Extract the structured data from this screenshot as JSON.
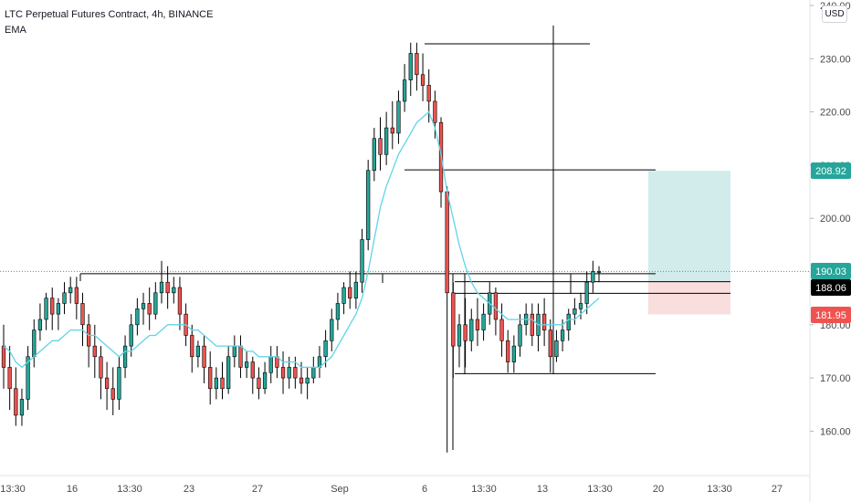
{
  "header": {
    "title": "LTC Perpetual Futures Contract, 4h, BINANCE",
    "indicator": "EMA",
    "currency": "USD"
  },
  "colors": {
    "up": "#26a69a",
    "down": "#ef5350",
    "candle_wick": "#000000",
    "ema": "#5fd4e8",
    "drawing": "#000000",
    "target_zone": "#b2e0dd",
    "stop_zone": "#f8cfcf",
    "target_badge": "#26a69a",
    "current_badge": "#26a69a",
    "entry_badge": "#000000",
    "stop_badge": "#ef5350",
    "grid_text": "#4a4a4a"
  },
  "chart_data": {
    "type": "candlestick",
    "title": "LTC Perpetual Futures Contract, 4h, BINANCE",
    "ylim": [
      150.0,
      240.0
    ],
    "y_ticks": [
      "240.00",
      "230.00",
      "220.00",
      "210.00",
      "200.00",
      "180.00",
      "170.00",
      "160.00"
    ],
    "x_ticks": [
      "13:30",
      "16",
      "13:30",
      "23",
      "27",
      "Sep",
      "6",
      "13:30",
      "13",
      "13:30",
      "20",
      "13:30",
      "27"
    ],
    "price_labels": [
      {
        "label": "208.92",
        "value": 208.92,
        "kind": "target"
      },
      {
        "label": "190.03",
        "value": 190.03,
        "kind": "current"
      },
      {
        "label": "188.06",
        "value": 188.06,
        "kind": "entry"
      },
      {
        "label": "181.95",
        "value": 181.95,
        "kind": "stop"
      }
    ],
    "horizontal_levels": [
      189.6,
      188.1,
      185.9,
      170.8,
      209.1,
      232.8
    ],
    "candles": [
      {
        "o": 176,
        "h": 180,
        "c": 172,
        "l": 168
      },
      {
        "o": 172,
        "h": 176,
        "c": 168,
        "l": 164
      },
      {
        "o": 168,
        "h": 172,
        "c": 163,
        "l": 161
      },
      {
        "o": 163,
        "h": 168,
        "c": 166,
        "l": 161
      },
      {
        "o": 166,
        "h": 176,
        "c": 174,
        "l": 164
      },
      {
        "o": 174,
        "h": 181,
        "c": 179,
        "l": 172
      },
      {
        "o": 179,
        "h": 184,
        "c": 181,
        "l": 177
      },
      {
        "o": 181,
        "h": 186,
        "c": 185,
        "l": 179
      },
      {
        "o": 185,
        "h": 187,
        "c": 182,
        "l": 179
      },
      {
        "o": 182,
        "h": 185,
        "c": 184,
        "l": 179
      },
      {
        "o": 184,
        "h": 188,
        "c": 186,
        "l": 182
      },
      {
        "o": 186,
        "h": 189,
        "c": 187,
        "l": 184
      },
      {
        "o": 187,
        "h": 189,
        "c": 184,
        "l": 181
      },
      {
        "o": 184,
        "h": 186,
        "c": 180,
        "l": 176
      },
      {
        "o": 180,
        "h": 182,
        "c": 176,
        "l": 172
      },
      {
        "o": 176,
        "h": 180,
        "c": 174,
        "l": 170
      },
      {
        "o": 174,
        "h": 176,
        "c": 170,
        "l": 166
      },
      {
        "o": 170,
        "h": 173,
        "c": 168,
        "l": 164
      },
      {
        "o": 168,
        "h": 172,
        "c": 166,
        "l": 163
      },
      {
        "o": 166,
        "h": 174,
        "c": 172,
        "l": 164
      },
      {
        "o": 172,
        "h": 178,
        "c": 176,
        "l": 170
      },
      {
        "o": 176,
        "h": 182,
        "c": 180,
        "l": 174
      },
      {
        "o": 180,
        "h": 185,
        "c": 183,
        "l": 178
      },
      {
        "o": 183,
        "h": 186,
        "c": 184,
        "l": 180
      },
      {
        "o": 184,
        "h": 187,
        "c": 182,
        "l": 179
      },
      {
        "o": 182,
        "h": 188,
        "c": 186,
        "l": 181
      },
      {
        "o": 186,
        "h": 192,
        "c": 188,
        "l": 184
      },
      {
        "o": 188,
        "h": 191,
        "c": 186,
        "l": 183
      },
      {
        "o": 186,
        "h": 189,
        "c": 187,
        "l": 184
      },
      {
        "o": 187,
        "h": 189,
        "c": 182,
        "l": 179
      },
      {
        "o": 182,
        "h": 184,
        "c": 178,
        "l": 176
      },
      {
        "o": 178,
        "h": 180,
        "c": 174,
        "l": 171
      },
      {
        "o": 174,
        "h": 177,
        "c": 176,
        "l": 172
      },
      {
        "o": 176,
        "h": 178,
        "c": 172,
        "l": 169
      },
      {
        "o": 172,
        "h": 175,
        "c": 168,
        "l": 165
      },
      {
        "o": 168,
        "h": 172,
        "c": 170,
        "l": 166
      },
      {
        "o": 170,
        "h": 173,
        "c": 168,
        "l": 166
      },
      {
        "o": 168,
        "h": 176,
        "c": 174,
        "l": 167
      },
      {
        "o": 174,
        "h": 178,
        "c": 176,
        "l": 172
      },
      {
        "o": 176,
        "h": 178,
        "c": 172,
        "l": 170
      },
      {
        "o": 172,
        "h": 175,
        "c": 173,
        "l": 170
      },
      {
        "o": 173,
        "h": 174,
        "c": 170,
        "l": 167
      },
      {
        "o": 170,
        "h": 172,
        "c": 168,
        "l": 166
      },
      {
        "o": 168,
        "h": 173,
        "c": 171,
        "l": 167
      },
      {
        "o": 171,
        "h": 176,
        "c": 174,
        "l": 169
      },
      {
        "o": 174,
        "h": 176,
        "c": 172,
        "l": 170
      },
      {
        "o": 172,
        "h": 175,
        "c": 170,
        "l": 167
      },
      {
        "o": 170,
        "h": 174,
        "c": 172,
        "l": 168
      },
      {
        "o": 172,
        "h": 174,
        "c": 170,
        "l": 168
      },
      {
        "o": 170,
        "h": 173,
        "c": 169,
        "l": 167
      },
      {
        "o": 169,
        "h": 172,
        "c": 170,
        "l": 166
      },
      {
        "o": 170,
        "h": 174,
        "c": 172,
        "l": 169
      },
      {
        "o": 172,
        "h": 176,
        "c": 174,
        "l": 170
      },
      {
        "o": 174,
        "h": 179,
        "c": 177,
        "l": 172
      },
      {
        "o": 177,
        "h": 183,
        "c": 181,
        "l": 175
      },
      {
        "o": 181,
        "h": 186,
        "c": 184,
        "l": 179
      },
      {
        "o": 184,
        "h": 188,
        "c": 187,
        "l": 182
      },
      {
        "o": 187,
        "h": 190,
        "c": 185,
        "l": 183
      },
      {
        "o": 185,
        "h": 190,
        "c": 188,
        "l": 183
      },
      {
        "o": 188,
        "h": 198,
        "c": 196,
        "l": 186
      },
      {
        "o": 196,
        "h": 211,
        "c": 209,
        "l": 194
      },
      {
        "o": 209,
        "h": 217,
        "c": 215,
        "l": 207
      },
      {
        "o": 215,
        "h": 219,
        "c": 212,
        "l": 209
      },
      {
        "o": 212,
        "h": 220,
        "c": 217,
        "l": 210
      },
      {
        "o": 217,
        "h": 222,
        "c": 216,
        "l": 213
      },
      {
        "o": 216,
        "h": 224,
        "c": 222,
        "l": 214
      },
      {
        "o": 222,
        "h": 229,
        "c": 226,
        "l": 220
      },
      {
        "o": 226,
        "h": 233,
        "c": 231,
        "l": 223
      },
      {
        "o": 231,
        "h": 233,
        "c": 227,
        "l": 224
      },
      {
        "o": 227,
        "h": 231,
        "c": 225,
        "l": 222
      },
      {
        "o": 225,
        "h": 228,
        "c": 222,
        "l": 218
      },
      {
        "o": 222,
        "h": 224,
        "c": 218,
        "l": 215
      },
      {
        "o": 218,
        "h": 219,
        "c": 205,
        "l": 202
      },
      {
        "o": 205,
        "h": 206,
        "c": 186,
        "l": 156
      },
      {
        "o": 186,
        "h": 188,
        "c": 176,
        "l": 170
      },
      {
        "o": 176,
        "h": 182,
        "c": 180,
        "l": 172
      },
      {
        "o": 180,
        "h": 185,
        "c": 177,
        "l": 172
      },
      {
        "o": 177,
        "h": 183,
        "c": 181,
        "l": 175
      },
      {
        "o": 181,
        "h": 185,
        "c": 179,
        "l": 176
      },
      {
        "o": 179,
        "h": 184,
        "c": 182,
        "l": 177
      },
      {
        "o": 182,
        "h": 188,
        "c": 186,
        "l": 180
      },
      {
        "o": 186,
        "h": 187,
        "c": 181,
        "l": 178
      },
      {
        "o": 181,
        "h": 184,
        "c": 177,
        "l": 174
      },
      {
        "o": 177,
        "h": 179,
        "c": 173,
        "l": 171
      },
      {
        "o": 173,
        "h": 178,
        "c": 176,
        "l": 171
      },
      {
        "o": 176,
        "h": 182,
        "c": 180,
        "l": 174
      },
      {
        "o": 180,
        "h": 184,
        "c": 182,
        "l": 178
      },
      {
        "o": 182,
        "h": 184,
        "c": 178,
        "l": 176
      },
      {
        "o": 178,
        "h": 184,
        "c": 182,
        "l": 175
      },
      {
        "o": 182,
        "h": 185,
        "c": 179,
        "l": 176
      },
      {
        "o": 179,
        "h": 181,
        "c": 174,
        "l": 171
      },
      {
        "o": 174,
        "h": 179,
        "c": 177,
        "l": 173
      },
      {
        "o": 177,
        "h": 181,
        "c": 179,
        "l": 175
      },
      {
        "o": 179,
        "h": 183,
        "c": 182,
        "l": 177
      },
      {
        "o": 182,
        "h": 185,
        "c": 183,
        "l": 180
      },
      {
        "o": 183,
        "h": 186,
        "c": 184,
        "l": 181
      },
      {
        "o": 184,
        "h": 190,
        "c": 188,
        "l": 182
      },
      {
        "o": 188,
        "h": 192,
        "c": 190,
        "l": 186
      },
      {
        "o": 190,
        "h": 191,
        "c": 190,
        "l": 188
      }
    ],
    "ema": [
      176,
      175,
      173,
      172,
      173,
      174,
      175,
      176,
      177,
      177,
      178,
      179,
      179,
      179,
      178,
      178,
      177,
      176,
      175,
      174,
      175,
      175,
      176,
      177,
      178,
      178,
      179,
      180,
      180,
      180,
      180,
      179,
      179,
      178,
      177,
      176,
      176,
      176,
      176,
      176,
      175,
      175,
      174,
      174,
      174,
      174,
      173,
      173,
      173,
      172,
      172,
      172,
      172,
      173,
      174,
      176,
      178,
      180,
      182,
      185,
      190,
      196,
      202,
      206,
      209,
      212,
      214,
      216,
      218,
      219,
      220,
      217,
      212,
      205,
      200,
      195,
      191,
      188,
      186,
      185,
      184,
      183,
      182,
      181,
      181,
      181,
      181,
      181,
      180,
      180,
      180,
      180,
      180,
      181,
      181,
      182,
      183,
      184,
      185
    ]
  }
}
